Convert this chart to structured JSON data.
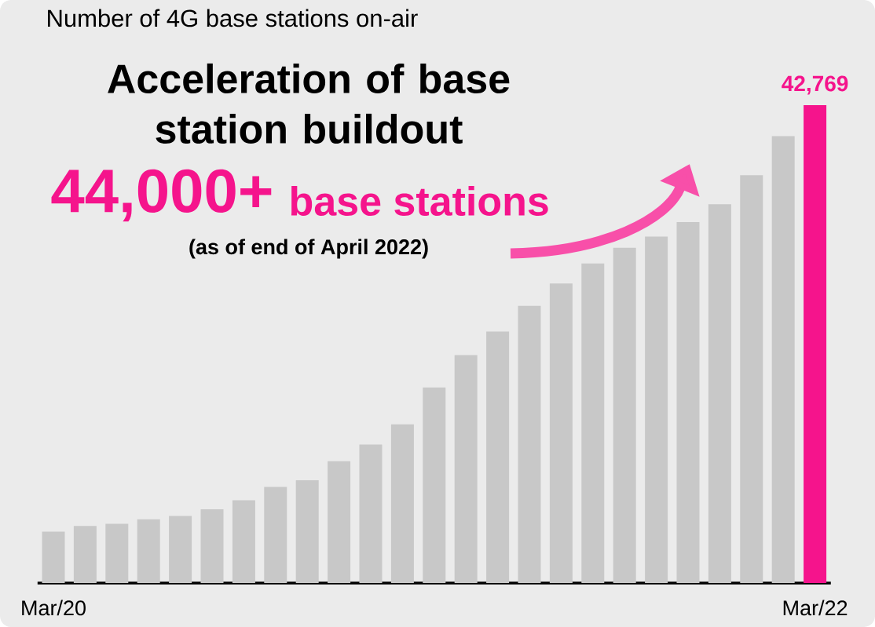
{
  "chart_data": {
    "type": "bar",
    "title": "Number of 4G base stations on-air",
    "annotations": [
      "Acceleration of base station buildout",
      "44,000+",
      "base stations",
      "(as of end of April 2022)"
    ],
    "categories": [
      "Mar/20",
      null,
      null,
      null,
      null,
      null,
      null,
      null,
      null,
      null,
      null,
      null,
      null,
      null,
      null,
      null,
      null,
      null,
      null,
      null,
      null,
      null,
      null,
      null,
      "Mar/22"
    ],
    "values": [
      4600,
      5100,
      5300,
      5700,
      6000,
      6600,
      7400,
      8600,
      9200,
      10900,
      12400,
      14200,
      17500,
      20400,
      22500,
      24800,
      26800,
      28600,
      30000,
      31000,
      32300,
      33900,
      36500,
      40000,
      42769
    ],
    "colors": [
      "#c8c8c8",
      "#c8c8c8",
      "#c8c8c8",
      "#c8c8c8",
      "#c8c8c8",
      "#c8c8c8",
      "#c8c8c8",
      "#c8c8c8",
      "#c8c8c8",
      "#c8c8c8",
      "#c8c8c8",
      "#c8c8c8",
      "#c8c8c8",
      "#c8c8c8",
      "#c8c8c8",
      "#c8c8c8",
      "#c8c8c8",
      "#c8c8c8",
      "#c8c8c8",
      "#c8c8c8",
      "#c8c8c8",
      "#c8c8c8",
      "#c8c8c8",
      "#c8c8c8",
      "#f5148c"
    ],
    "value_labels": [
      null,
      null,
      null,
      null,
      null,
      null,
      null,
      null,
      null,
      null,
      null,
      null,
      null,
      null,
      null,
      null,
      null,
      null,
      null,
      null,
      null,
      null,
      null,
      null,
      "42,769"
    ]
  }
}
